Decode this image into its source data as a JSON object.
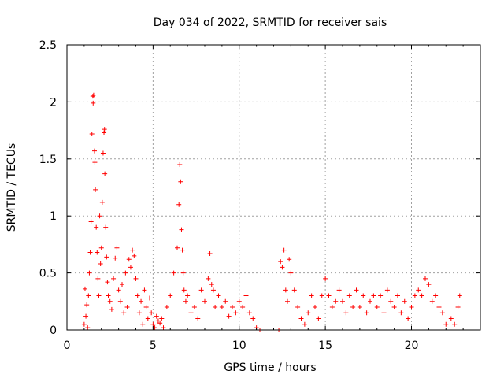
{
  "chart_data": {
    "type": "scatter",
    "title": "Day 034 of 2022, SRMTID for receiver sais",
    "xlabel": "GPS time / hours",
    "ylabel": "SRMTID / TECUs",
    "xlim": [
      0,
      24
    ],
    "ylim": [
      0,
      2.5
    ],
    "xticks": [
      0,
      5,
      10,
      15,
      20
    ],
    "xtick_labels": [
      "0",
      "5",
      "10",
      "15",
      "20"
    ],
    "yticks": [
      0,
      0.5,
      1,
      1.5,
      2,
      2.5
    ],
    "ytick_labels": [
      "0",
      "0.5",
      "1",
      "1.5",
      "2",
      "2.5"
    ],
    "grid": true,
    "marker": "+",
    "colors": {
      "series": "#ff0000",
      "grid": "#a0a0a0",
      "axis": "#000000"
    },
    "series": [
      {
        "name": "SRMTID",
        "points": [
          [
            1.0,
            0.05
          ],
          [
            1.05,
            0.36
          ],
          [
            1.1,
            0.12
          ],
          [
            1.15,
            0.22
          ],
          [
            1.2,
            0.02
          ],
          [
            1.25,
            0.3
          ],
          [
            1.3,
            0.5
          ],
          [
            1.35,
            0.68
          ],
          [
            1.4,
            0.95
          ],
          [
            1.45,
            1.72
          ],
          [
            1.5,
            2.05
          ],
          [
            1.52,
            1.99
          ],
          [
            1.55,
            2.06
          ],
          [
            1.6,
            1.57
          ],
          [
            1.62,
            1.47
          ],
          [
            1.65,
            1.23
          ],
          [
            1.7,
            0.9
          ],
          [
            1.75,
            0.68
          ],
          [
            1.8,
            0.45
          ],
          [
            1.85,
            0.3
          ],
          [
            1.9,
            1.0
          ],
          [
            1.95,
            0.58
          ],
          [
            2.0,
            0.72
          ],
          [
            2.05,
            1.12
          ],
          [
            2.1,
            1.55
          ],
          [
            2.15,
            1.73
          ],
          [
            2.18,
            1.76
          ],
          [
            2.2,
            1.37
          ],
          [
            2.25,
            0.9
          ],
          [
            2.3,
            0.64
          ],
          [
            2.35,
            0.42
          ],
          [
            2.4,
            0.3
          ],
          [
            2.5,
            0.25
          ],
          [
            2.6,
            0.18
          ],
          [
            2.7,
            0.45
          ],
          [
            2.8,
            0.63
          ],
          [
            2.9,
            0.72
          ],
          [
            3.0,
            0.35
          ],
          [
            3.1,
            0.25
          ],
          [
            3.2,
            0.4
          ],
          [
            3.3,
            0.15
          ],
          [
            3.4,
            0.5
          ],
          [
            3.5,
            0.2
          ],
          [
            3.6,
            0.62
          ],
          [
            3.7,
            0.55
          ],
          [
            3.8,
            0.7
          ],
          [
            3.9,
            0.65
          ],
          [
            4.0,
            0.45
          ],
          [
            4.1,
            0.3
          ],
          [
            4.2,
            0.15
          ],
          [
            4.3,
            0.25
          ],
          [
            4.4,
            0.05
          ],
          [
            4.5,
            0.35
          ],
          [
            4.6,
            0.2
          ],
          [
            4.7,
            0.1
          ],
          [
            4.8,
            0.28
          ],
          [
            4.9,
            0.15
          ],
          [
            5.0,
            0.05
          ],
          [
            5.1,
            0.02
          ],
          [
            5.2,
            0.12
          ],
          [
            5.3,
            0.08
          ],
          [
            5.4,
            0.06
          ],
          [
            5.5,
            0.1
          ],
          [
            5.6,
            0.02
          ],
          [
            5.8,
            0.2
          ],
          [
            6.0,
            0.3
          ],
          [
            6.2,
            0.5
          ],
          [
            6.4,
            0.72
          ],
          [
            6.5,
            1.1
          ],
          [
            6.55,
            1.45
          ],
          [
            6.6,
            1.3
          ],
          [
            6.65,
            0.88
          ],
          [
            6.7,
            0.7
          ],
          [
            6.75,
            0.5
          ],
          [
            6.8,
            0.35
          ],
          [
            6.9,
            0.25
          ],
          [
            7.0,
            0.3
          ],
          [
            7.2,
            0.15
          ],
          [
            7.4,
            0.2
          ],
          [
            7.6,
            0.1
          ],
          [
            7.8,
            0.35
          ],
          [
            8.0,
            0.25
          ],
          [
            8.2,
            0.45
          ],
          [
            8.3,
            0.67
          ],
          [
            8.4,
            0.4
          ],
          [
            8.5,
            0.35
          ],
          [
            8.6,
            0.2
          ],
          [
            8.8,
            0.3
          ],
          [
            9.0,
            0.2
          ],
          [
            9.2,
            0.25
          ],
          [
            9.4,
            0.12
          ],
          [
            9.6,
            0.2
          ],
          [
            9.8,
            0.15
          ],
          [
            10.0,
            0.25
          ],
          [
            10.2,
            0.2
          ],
          [
            10.4,
            0.3
          ],
          [
            10.6,
            0.15
          ],
          [
            10.8,
            0.1
          ],
          [
            11.0,
            0.02
          ],
          [
            11.2,
            0.0
          ],
          [
            12.3,
            0.0
          ],
          [
            12.4,
            0.6
          ],
          [
            12.5,
            0.55
          ],
          [
            12.6,
            0.7
          ],
          [
            12.7,
            0.35
          ],
          [
            12.8,
            0.25
          ],
          [
            12.9,
            0.62
          ],
          [
            13.0,
            0.5
          ],
          [
            13.2,
            0.35
          ],
          [
            13.4,
            0.2
          ],
          [
            13.6,
            0.1
          ],
          [
            13.8,
            0.05
          ],
          [
            14.0,
            0.15
          ],
          [
            14.2,
            0.3
          ],
          [
            14.4,
            0.2
          ],
          [
            14.6,
            0.1
          ],
          [
            14.8,
            0.3
          ],
          [
            15.0,
            0.45
          ],
          [
            15.2,
            0.3
          ],
          [
            15.4,
            0.2
          ],
          [
            15.6,
            0.25
          ],
          [
            15.8,
            0.35
          ],
          [
            16.0,
            0.25
          ],
          [
            16.2,
            0.15
          ],
          [
            16.4,
            0.3
          ],
          [
            16.6,
            0.2
          ],
          [
            16.8,
            0.35
          ],
          [
            17.0,
            0.2
          ],
          [
            17.2,
            0.3
          ],
          [
            17.4,
            0.15
          ],
          [
            17.6,
            0.25
          ],
          [
            17.8,
            0.3
          ],
          [
            18.0,
            0.2
          ],
          [
            18.2,
            0.3
          ],
          [
            18.4,
            0.15
          ],
          [
            18.6,
            0.35
          ],
          [
            18.8,
            0.25
          ],
          [
            19.0,
            0.2
          ],
          [
            19.2,
            0.3
          ],
          [
            19.4,
            0.15
          ],
          [
            19.6,
            0.25
          ],
          [
            19.8,
            0.1
          ],
          [
            20.0,
            0.2
          ],
          [
            20.2,
            0.3
          ],
          [
            20.4,
            0.35
          ],
          [
            20.6,
            0.3
          ],
          [
            20.8,
            0.45
          ],
          [
            21.0,
            0.4
          ],
          [
            21.2,
            0.25
          ],
          [
            21.4,
            0.3
          ],
          [
            21.6,
            0.2
          ],
          [
            21.8,
            0.15
          ],
          [
            22.0,
            0.05
          ],
          [
            22.3,
            0.1
          ],
          [
            22.5,
            0.05
          ],
          [
            22.7,
            0.2
          ],
          [
            22.8,
            0.3
          ]
        ]
      }
    ]
  }
}
